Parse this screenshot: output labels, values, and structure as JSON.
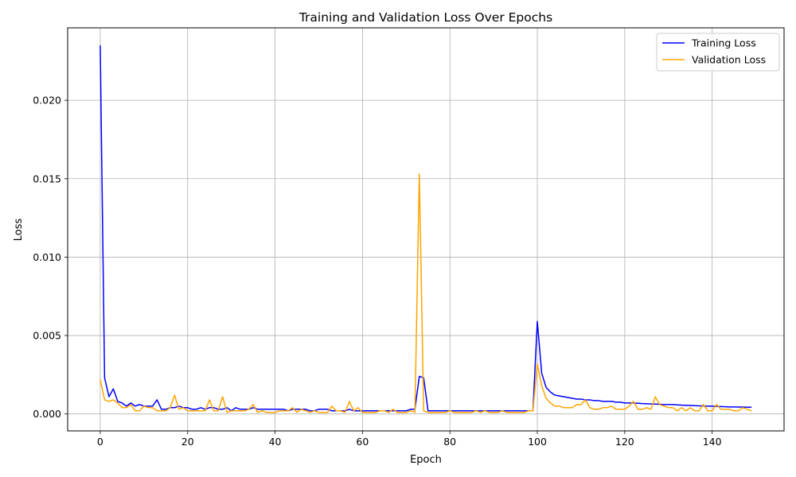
{
  "chart_data": {
    "type": "line",
    "title": "Training and Validation Loss Over Epochs",
    "xlabel": "Epoch",
    "ylabel": "Loss",
    "xlim": [
      -7.45,
      156.45
    ],
    "ylim": [
      -0.00108,
      0.02462
    ],
    "xticks": [
      0,
      20,
      40,
      60,
      80,
      100,
      120,
      140
    ],
    "yticks": [
      0.0,
      0.005,
      0.01,
      0.015,
      0.02
    ],
    "xtick_labels": [
      "0",
      "20",
      "40",
      "60",
      "80",
      "100",
      "120",
      "140"
    ],
    "ytick_labels": [
      "0.000",
      "0.005",
      "0.010",
      "0.015",
      "0.020"
    ],
    "grid": true,
    "legend_position": "top-right",
    "series": [
      {
        "name": "Training Loss",
        "color": "#0000ff",
        "x": [
          0,
          1,
          2,
          3,
          4,
          5,
          6,
          7,
          8,
          9,
          10,
          11,
          12,
          13,
          14,
          15,
          16,
          17,
          18,
          19,
          20,
          21,
          22,
          23,
          24,
          25,
          26,
          27,
          28,
          29,
          30,
          31,
          32,
          33,
          34,
          35,
          36,
          37,
          38,
          39,
          40,
          41,
          42,
          43,
          44,
          45,
          46,
          47,
          48,
          49,
          50,
          51,
          52,
          53,
          54,
          55,
          56,
          57,
          58,
          59,
          60,
          61,
          62,
          63,
          64,
          65,
          66,
          67,
          68,
          69,
          70,
          71,
          72,
          73,
          74,
          75,
          76,
          77,
          78,
          79,
          80,
          81,
          82,
          83,
          84,
          85,
          86,
          87,
          88,
          89,
          90,
          91,
          92,
          93,
          94,
          95,
          96,
          97,
          98,
          99,
          100,
          101,
          102,
          103,
          104,
          105,
          106,
          107,
          108,
          109,
          110,
          111,
          112,
          113,
          114,
          115,
          116,
          117,
          118,
          119,
          120,
          121,
          122,
          123,
          124,
          125,
          126,
          127,
          128,
          129,
          130,
          131,
          132,
          133,
          134,
          135,
          136,
          137,
          138,
          139,
          140,
          141,
          142,
          143,
          144,
          145,
          146,
          147,
          148,
          149
        ],
        "y": [
          0.0235,
          0.0023,
          0.0011,
          0.0016,
          0.0008,
          0.0007,
          0.0005,
          0.0007,
          0.0005,
          0.0006,
          0.0005,
          0.0005,
          0.0005,
          0.0009,
          0.0003,
          0.0003,
          0.0004,
          0.0004,
          0.0005,
          0.0004,
          0.0004,
          0.0003,
          0.0003,
          0.0004,
          0.0003,
          0.0004,
          0.0004,
          0.0003,
          0.0003,
          0.0004,
          0.0002,
          0.0004,
          0.0003,
          0.0003,
          0.0003,
          0.0004,
          0.0003,
          0.0003,
          0.0003,
          0.0003,
          0.0003,
          0.0003,
          0.0003,
          0.0002,
          0.0003,
          0.0003,
          0.0003,
          0.0003,
          0.0002,
          0.0002,
          0.0003,
          0.0003,
          0.0003,
          0.0002,
          0.0002,
          0.0002,
          0.0002,
          0.0003,
          0.0002,
          0.0002,
          0.0002,
          0.0002,
          0.0002,
          0.0002,
          0.0002,
          0.0002,
          0.0002,
          0.0002,
          0.0002,
          0.0002,
          0.0002,
          0.0003,
          0.0003,
          0.0024,
          0.0023,
          0.0002,
          0.0002,
          0.0002,
          0.0002,
          0.0002,
          0.0002,
          0.0002,
          0.0002,
          0.0002,
          0.0002,
          0.0002,
          0.0002,
          0.0002,
          0.0002,
          0.0002,
          0.0002,
          0.0002,
          0.0002,
          0.0002,
          0.0002,
          0.0002,
          0.0002,
          0.0002,
          0.0002,
          0.0002,
          0.0059,
          0.0026,
          0.0017,
          0.0014,
          0.0012,
          0.00115,
          0.0011,
          0.00105,
          0.001,
          0.00095,
          0.00095,
          0.0009,
          0.0009,
          0.00085,
          0.00085,
          0.0008,
          0.0008,
          0.0008,
          0.00075,
          0.00075,
          0.0007,
          0.0007,
          0.0007,
          0.00068,
          0.00066,
          0.00065,
          0.00064,
          0.00063,
          0.00062,
          0.0006,
          0.0006,
          0.0006,
          0.00058,
          0.00056,
          0.00055,
          0.00054,
          0.00053,
          0.00052,
          0.00051,
          0.0005,
          0.0005,
          0.00048,
          0.00047,
          0.00046,
          0.00045,
          0.00045,
          0.00044,
          0.00044,
          0.00043,
          0.00043
        ]
      },
      {
        "name": "Validation Loss",
        "color": "#ffa500",
        "x": [
          0,
          1,
          2,
          3,
          4,
          5,
          6,
          7,
          8,
          9,
          10,
          11,
          12,
          13,
          14,
          15,
          16,
          17,
          18,
          19,
          20,
          21,
          22,
          23,
          24,
          25,
          26,
          27,
          28,
          29,
          30,
          31,
          32,
          33,
          34,
          35,
          36,
          37,
          38,
          39,
          40,
          41,
          42,
          43,
          44,
          45,
          46,
          47,
          48,
          49,
          50,
          51,
          52,
          53,
          54,
          55,
          56,
          57,
          58,
          59,
          60,
          61,
          62,
          63,
          64,
          65,
          66,
          67,
          68,
          69,
          70,
          71,
          72,
          73,
          74,
          75,
          76,
          77,
          78,
          79,
          80,
          81,
          82,
          83,
          84,
          85,
          86,
          87,
          88,
          89,
          90,
          91,
          92,
          93,
          94,
          95,
          96,
          97,
          98,
          99,
          100,
          101,
          102,
          103,
          104,
          105,
          106,
          107,
          108,
          109,
          110,
          111,
          112,
          113,
          114,
          115,
          116,
          117,
          118,
          119,
          120,
          121,
          122,
          123,
          124,
          125,
          126,
          127,
          128,
          129,
          130,
          131,
          132,
          133,
          134,
          135,
          136,
          137,
          138,
          139,
          140,
          141,
          142,
          143,
          144,
          145,
          146,
          147,
          148,
          149
        ],
        "y": [
          0.0022,
          0.0009,
          0.0008,
          0.0009,
          0.0007,
          0.0004,
          0.0004,
          0.0006,
          0.0002,
          0.0002,
          0.0005,
          0.0004,
          0.0004,
          0.0002,
          0.0002,
          0.0002,
          0.0004,
          0.0012,
          0.0003,
          0.0004,
          0.0002,
          0.0002,
          0.0002,
          0.0002,
          0.0002,
          0.0009,
          0.0002,
          0.0002,
          0.0011,
          0.0001,
          0.0002,
          0.0002,
          0.0002,
          0.0002,
          0.0003,
          0.0006,
          0.0001,
          0.0002,
          0.0001,
          0.0001,
          0.0001,
          0.0002,
          0.0002,
          0.0002,
          0.0004,
          0.0001,
          0.0003,
          0.0002,
          0.0001,
          0.0002,
          0.0001,
          0.0001,
          0.0001,
          0.0005,
          0.0002,
          0.0002,
          0.0001,
          0.0008,
          0.0002,
          0.0004,
          0.0001,
          0.0001,
          0.0001,
          0.0001,
          0.0002,
          0.0002,
          0.0001,
          0.0003,
          0.0001,
          0.0001,
          0.0001,
          0.0002,
          0.0001,
          0.0153,
          0.0002,
          0.0001,
          0.0001,
          0.0001,
          0.0001,
          0.0001,
          0.0002,
          0.0001,
          0.0001,
          0.0001,
          0.0001,
          0.0001,
          0.0002,
          0.0001,
          0.0002,
          0.0001,
          0.0001,
          0.0001,
          0.0002,
          0.0001,
          0.0001,
          0.0001,
          0.0001,
          0.0001,
          0.0002,
          0.0002,
          0.0032,
          0.0018,
          0.001,
          0.0007,
          0.0005,
          0.0005,
          0.0004,
          0.0004,
          0.0004,
          0.0006,
          0.0006,
          0.0009,
          0.0004,
          0.0003,
          0.0003,
          0.0004,
          0.0004,
          0.0005,
          0.0003,
          0.0003,
          0.0003,
          0.0005,
          0.0008,
          0.0003,
          0.0003,
          0.0004,
          0.0003,
          0.0011,
          0.0006,
          0.0005,
          0.0004,
          0.0004,
          0.0002,
          0.0004,
          0.0002,
          0.0004,
          0.0002,
          0.0002,
          0.0006,
          0.0002,
          0.0002,
          0.0006,
          0.0003,
          0.0003,
          0.0003,
          0.0002,
          0.0002,
          0.0004,
          0.0003,
          0.0002
        ]
      }
    ]
  }
}
